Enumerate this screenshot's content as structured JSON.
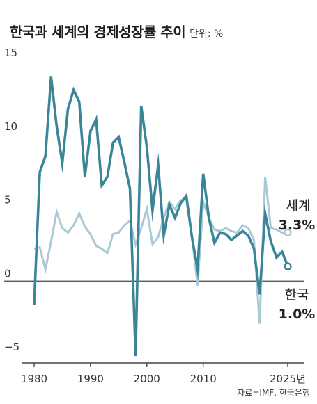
{
  "header": {
    "title": "한국과 세계의 경제성장률 추이",
    "unit": "단위: %"
  },
  "source": "자료=IMF, 한국은행",
  "chart_data": {
    "type": "line",
    "title": "한국과 세계의 경제성장률 추이",
    "xlabel": "",
    "ylabel": "",
    "xlim": [
      1980,
      2025
    ],
    "ylim": [
      -5,
      15
    ],
    "yticks": [
      -5,
      0,
      5,
      10,
      15
    ],
    "xticks": [
      1980,
      1990,
      2000,
      2010,
      2025
    ],
    "xtick_labels": [
      "1980",
      "1990",
      "2000",
      "2010",
      "2025년"
    ],
    "grid": false,
    "colors": {
      "korea": "#3a8597",
      "world": "#a9c9d6",
      "baseline": "#444444"
    },
    "series": [
      {
        "name": "세계",
        "end_label": "3.3%",
        "color": "#a9c9d6",
        "x": [
          1980,
          1981,
          1982,
          1983,
          1984,
          1985,
          1986,
          1987,
          1988,
          1989,
          1990,
          1991,
          1992,
          1993,
          1994,
          1995,
          1996,
          1997,
          1998,
          1999,
          2000,
          2001,
          2002,
          2003,
          2004,
          2005,
          2006,
          2007,
          2008,
          2009,
          2010,
          2011,
          2012,
          2013,
          2014,
          2015,
          2016,
          2017,
          2018,
          2019,
          2020,
          2021,
          2022,
          2023,
          2024,
          2025
        ],
        "values": [
          2.2,
          2.3,
          0.8,
          2.7,
          4.7,
          3.6,
          3.3,
          3.8,
          4.6,
          3.7,
          3.2,
          2.4,
          2.2,
          1.9,
          3.2,
          3.3,
          3.8,
          4.1,
          2.5,
          3.6,
          4.9,
          2.5,
          3.0,
          4.3,
          5.4,
          4.9,
          5.5,
          5.6,
          3.0,
          -0.3,
          5.4,
          4.3,
          3.5,
          3.4,
          3.6,
          3.4,
          3.3,
          3.8,
          3.6,
          2.8,
          -2.9,
          7.1,
          3.6,
          3.5,
          3.3,
          3.3
        ]
      },
      {
        "name": "한국",
        "end_label": "1.0%",
        "color": "#3a8597",
        "x": [
          1980,
          1981,
          1982,
          1983,
          1984,
          1985,
          1986,
          1987,
          1988,
          1989,
          1990,
          1991,
          1992,
          1993,
          1994,
          1995,
          1996,
          1997,
          1998,
          1999,
          2000,
          2001,
          2002,
          2003,
          2004,
          2005,
          2006,
          2007,
          2008,
          2009,
          2010,
          2011,
          2012,
          2013,
          2014,
          2015,
          2016,
          2017,
          2018,
          2019,
          2020,
          2021,
          2022,
          2023,
          2024,
          2025
        ],
        "values": [
          -1.6,
          7.4,
          8.5,
          13.9,
          10.5,
          8.0,
          11.7,
          13.0,
          12.2,
          7.1,
          10.2,
          11.0,
          6.5,
          7.1,
          9.4,
          9.8,
          8.1,
          6.3,
          -5.1,
          11.9,
          9.1,
          4.8,
          7.9,
          3.1,
          5.2,
          4.3,
          5.3,
          5.8,
          3.0,
          0.8,
          7.3,
          4.3,
          2.6,
          3.3,
          3.2,
          2.8,
          3.1,
          3.4,
          3.1,
          2.2,
          -0.9,
          4.6,
          2.7,
          1.6,
          2.0,
          1.0
        ]
      }
    ]
  }
}
